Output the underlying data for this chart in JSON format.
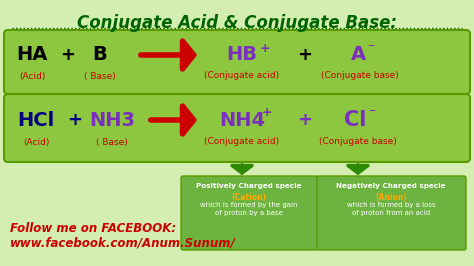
{
  "title": "Conjugate Acid & Conjugate Base:",
  "title_color": "#006400",
  "bg_color": "#d4edb0",
  "box1_color": "#8dc63f",
  "box2_color": "#8dc63f",
  "box_note_color": "#6db33f",
  "footer1": "Follow me on FACEBOOK:",
  "footer2": "www.facebook.com/Anum.Sunum/",
  "footer_color": "#cc0000",
  "arrow_color": "#cc0000",
  "down_arrow_color": "#2d8a00",
  "label_color": "#cc0000",
  "black": "#000000",
  "navy": "#000080",
  "purple": "#7b2fbe",
  "white": "#ffffff",
  "orange": "#ffaa00"
}
